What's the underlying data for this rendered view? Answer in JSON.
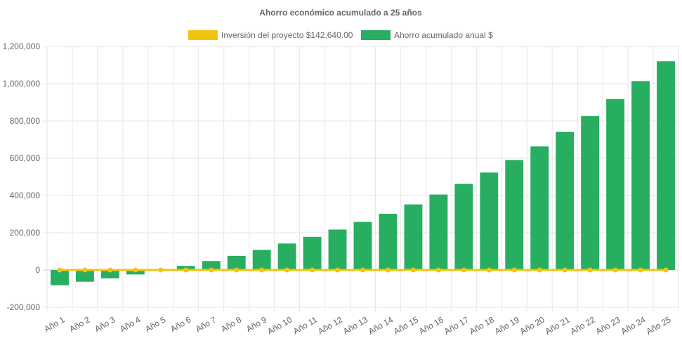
{
  "chart_data": {
    "type": "bar",
    "title": "Ahorro económico acumulado a 25 años",
    "xlabel": "",
    "ylabel": "",
    "ylim": [
      -200000,
      1200000
    ],
    "ytick_step": 200000,
    "grid": true,
    "legend_position": "top",
    "categories": [
      "Año 1",
      "Año 2",
      "Año 3",
      "Año 4",
      "Año 5",
      "Año 6",
      "Año 7",
      "Año 8",
      "Año 9",
      "Año 10",
      "Año 11",
      "Año 12",
      "Año 13",
      "Año 14",
      "Año 15",
      "Año 16",
      "Año 17",
      "Año 18",
      "Año 19",
      "Año 20",
      "Año 21",
      "Año 22",
      "Año 23",
      "Año 24",
      "Año 25"
    ],
    "yticks": [
      "-200,000",
      "0",
      "200,000",
      "400,000",
      "600,000",
      "800,000",
      "1,000,000",
      "1,200,000"
    ],
    "series": [
      {
        "name": "Inversión del proyecto $142,640.00",
        "kind": "line",
        "color": "#f1c40f",
        "values": [
          0,
          0,
          0,
          0,
          0,
          0,
          0,
          0,
          0,
          0,
          0,
          0,
          0,
          0,
          0,
          0,
          0,
          0,
          0,
          0,
          0,
          0,
          0,
          0,
          0
        ]
      },
      {
        "name": "Ahorro acumulado anual $",
        "kind": "bar",
        "color": "#27ae60",
        "values": [
          -82000,
          -63000,
          -45000,
          -24000,
          0,
          22000,
          48000,
          76000,
          108000,
          142000,
          178000,
          217000,
          258000,
          302000,
          352000,
          405000,
          462000,
          523000,
          590000,
          663000,
          741000,
          826000,
          917000,
          1014000,
          1120000
        ]
      }
    ]
  }
}
